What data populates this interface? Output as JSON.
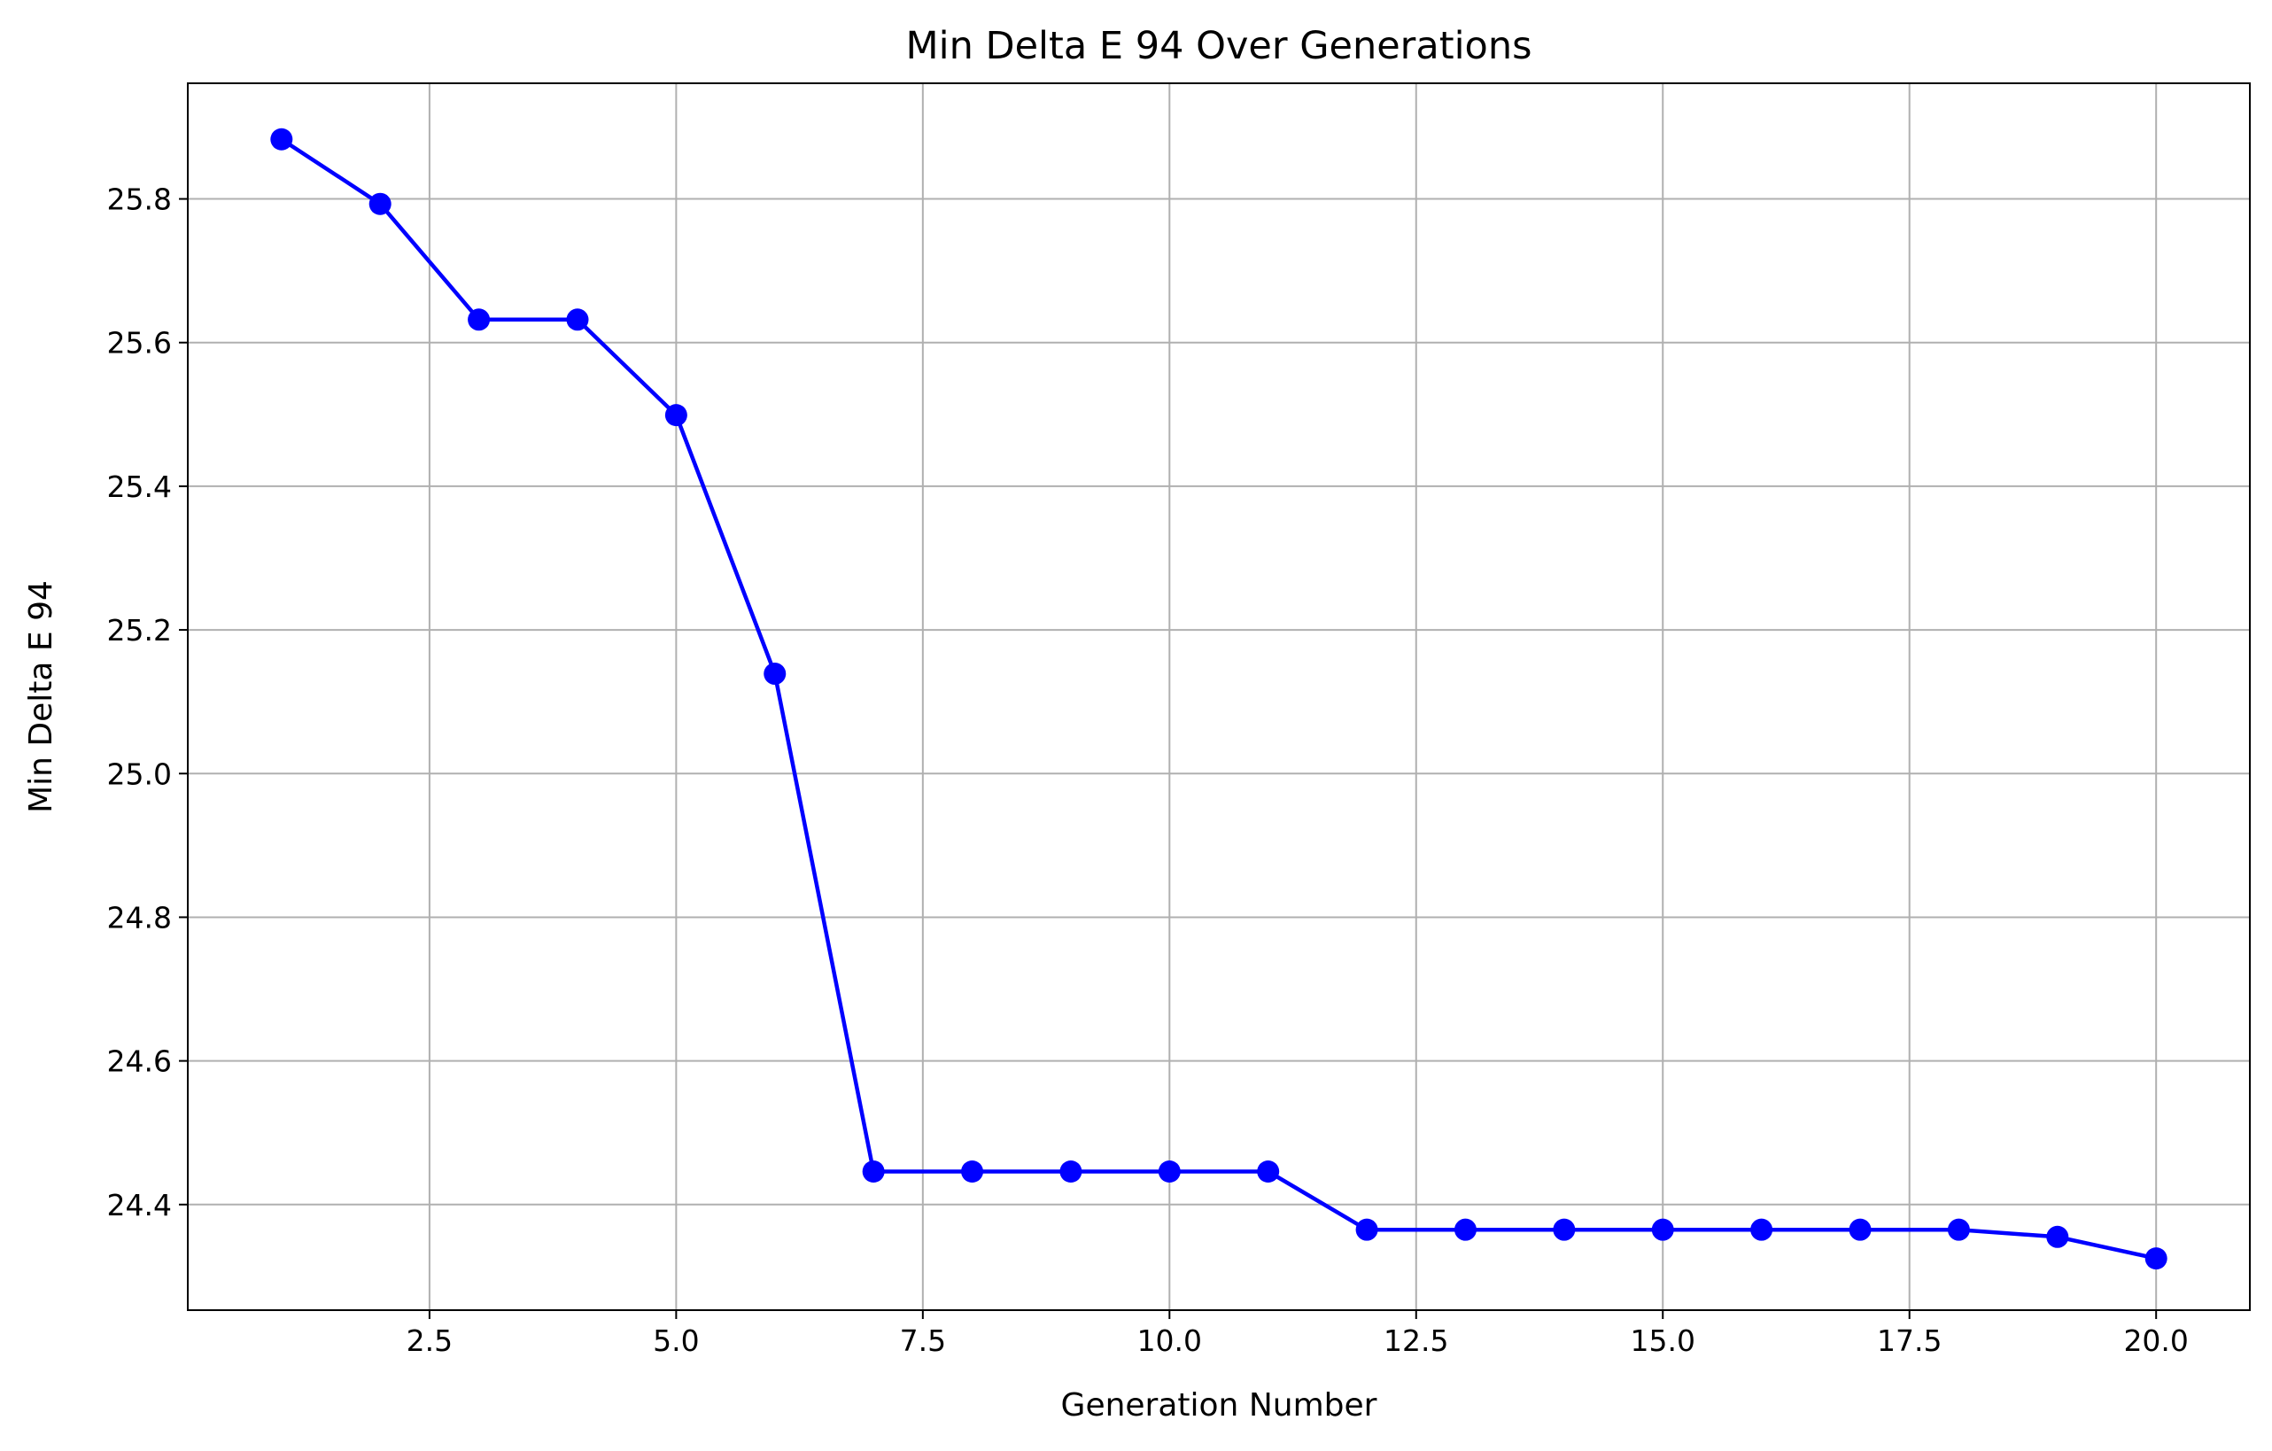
{
  "chart_data": {
    "type": "line",
    "title": "Min Delta E 94 Over Generations",
    "xlabel": "Generation Number",
    "ylabel": "Min Delta E 94",
    "x": [
      1,
      2,
      3,
      4,
      5,
      6,
      7,
      8,
      9,
      10,
      11,
      12,
      13,
      14,
      15,
      16,
      17,
      18,
      19,
      20
    ],
    "series": [
      {
        "values": [
          25.883,
          25.793,
          25.632,
          25.632,
          25.499,
          25.139,
          24.446,
          24.446,
          24.446,
          24.446,
          24.446,
          24.365,
          24.365,
          24.365,
          24.365,
          24.365,
          24.365,
          24.365,
          24.355,
          24.325
        ],
        "color": "#0000ff",
        "marker": "circle"
      }
    ],
    "xlim": [
      0.05,
      20.95
    ],
    "ylim": [
      24.253,
      25.961
    ],
    "xticks": [
      2.5,
      5.0,
      7.5,
      10.0,
      12.5,
      15.0,
      17.5,
      20.0
    ],
    "xtick_labels": [
      "2.5",
      "5.0",
      "7.5",
      "10.0",
      "12.5",
      "15.0",
      "17.5",
      "20.0"
    ],
    "yticks": [
      24.4,
      24.6,
      24.8,
      25.0,
      25.2,
      25.4,
      25.6,
      25.8
    ],
    "ytick_labels": [
      "24.4",
      "24.6",
      "24.8",
      "25.0",
      "25.2",
      "25.4",
      "25.6",
      "25.8"
    ],
    "grid": true,
    "grid_color": "#b0b0b0"
  }
}
